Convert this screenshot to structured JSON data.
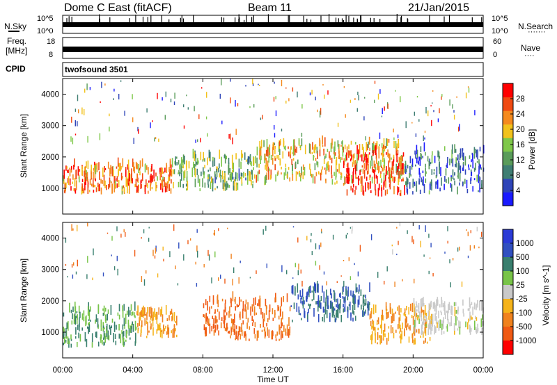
{
  "header": {
    "radar": "Dome C East (fitACF)",
    "beam": "Beam 11",
    "date": "21/Jan/2015"
  },
  "nsky_panel": {
    "left_label": "N.Sky",
    "left_ticks": [
      "10^5",
      "10^0"
    ],
    "right_label": "N.Search",
    "right_ticks": [
      "10^5",
      "10^0"
    ]
  },
  "freq_panel": {
    "left_label_1": "Freq.",
    "left_label_2": "[MHz]",
    "left_ticks": [
      "18",
      "8"
    ],
    "right_label": "Nave",
    "right_ticks": [
      "60",
      "0"
    ]
  },
  "cpid_panel": {
    "label": "CPID",
    "value": "twofsound 3501"
  },
  "colors": {
    "power_scale": [
      "#1a1aff",
      "#2f45b8",
      "#3f7e73",
      "#5a9c5a",
      "#7fc84a",
      "#f2c21c",
      "#f58a1e",
      "#f04a12",
      "#ff0000"
    ],
    "velocity_scale": [
      "#2b3bd6",
      "#3150c0",
      "#397f6e",
      "#78c448",
      "#c9c9c9",
      "#f5b31a",
      "#f0821e",
      "#f05a14",
      "#ff0000"
    ]
  },
  "chart_data": [
    {
      "type": "heatmap",
      "name": "power-panel",
      "xlabel": "",
      "ylabel": "Slant Range [km]",
      "x_ticks": [
        "00:00",
        "04:00",
        "08:00",
        "12:00",
        "16:00",
        "20:00",
        "00:00"
      ],
      "xlim_hours": [
        0,
        24
      ],
      "y_ticks": [
        1000,
        2000,
        3000,
        4000
      ],
      "ylim": [
        180,
        4500
      ],
      "colorbar": {
        "label": "Power [dB]",
        "ticks": [
          4,
          8,
          12,
          16,
          20,
          24,
          28
        ],
        "range": [
          0,
          32
        ]
      },
      "features": [
        {
          "x_hours": [
            0.0,
            6.3
          ],
          "range_km": [
            800,
            1700
          ],
          "power_db": 24
        },
        {
          "x_hours": [
            6.2,
            11.0
          ],
          "range_km": [
            900,
            2000
          ],
          "power_db": 14
        },
        {
          "x_hours": [
            11.0,
            19.5
          ],
          "range_km": [
            1100,
            2400
          ],
          "power_db": 20
        },
        {
          "x_hours": [
            16.0,
            19.5
          ],
          "range_km": [
            700,
            2100
          ],
          "power_db": 28
        },
        {
          "x_hours": [
            19.5,
            24.0
          ],
          "range_km": [
            800,
            2200
          ],
          "power_db": 8
        }
      ]
    },
    {
      "type": "heatmap",
      "name": "velocity-panel",
      "xlabel": "Time UT",
      "ylabel": "Slant Range [km]",
      "x_ticks": [
        "00:00",
        "04:00",
        "08:00",
        "12:00",
        "16:00",
        "20:00",
        "00:00"
      ],
      "xlim_hours": [
        0,
        24
      ],
      "y_ticks": [
        1000,
        2000,
        3000,
        4000
      ],
      "ylim": [
        180,
        4500
      ],
      "colorbar": {
        "label": "Velocity [m s^-1]",
        "ticks": [
          "1000",
          "500",
          "100",
          "25",
          "-25",
          "-100",
          "-500",
          "-1000"
        ]
      },
      "features": [
        {
          "x_hours": [
            0.0,
            4.2
          ],
          "range_km": [
            500,
            1700
          ],
          "velocity": 100
        },
        {
          "x_hours": [
            4.2,
            6.5
          ],
          "range_km": [
            800,
            1600
          ],
          "velocity": -100
        },
        {
          "x_hours": [
            8.0,
            13.0
          ],
          "range_km": [
            700,
            2000
          ],
          "velocity": -500
        },
        {
          "x_hours": [
            13.0,
            17.5
          ],
          "range_km": [
            1300,
            2300
          ],
          "velocity": 500
        },
        {
          "x_hours": [
            17.5,
            21.0
          ],
          "range_km": [
            600,
            1700
          ],
          "velocity": -100
        },
        {
          "x_hours": [
            20.0,
            24.0
          ],
          "range_km": [
            900,
            1900
          ],
          "velocity": 0
        }
      ]
    }
  ]
}
